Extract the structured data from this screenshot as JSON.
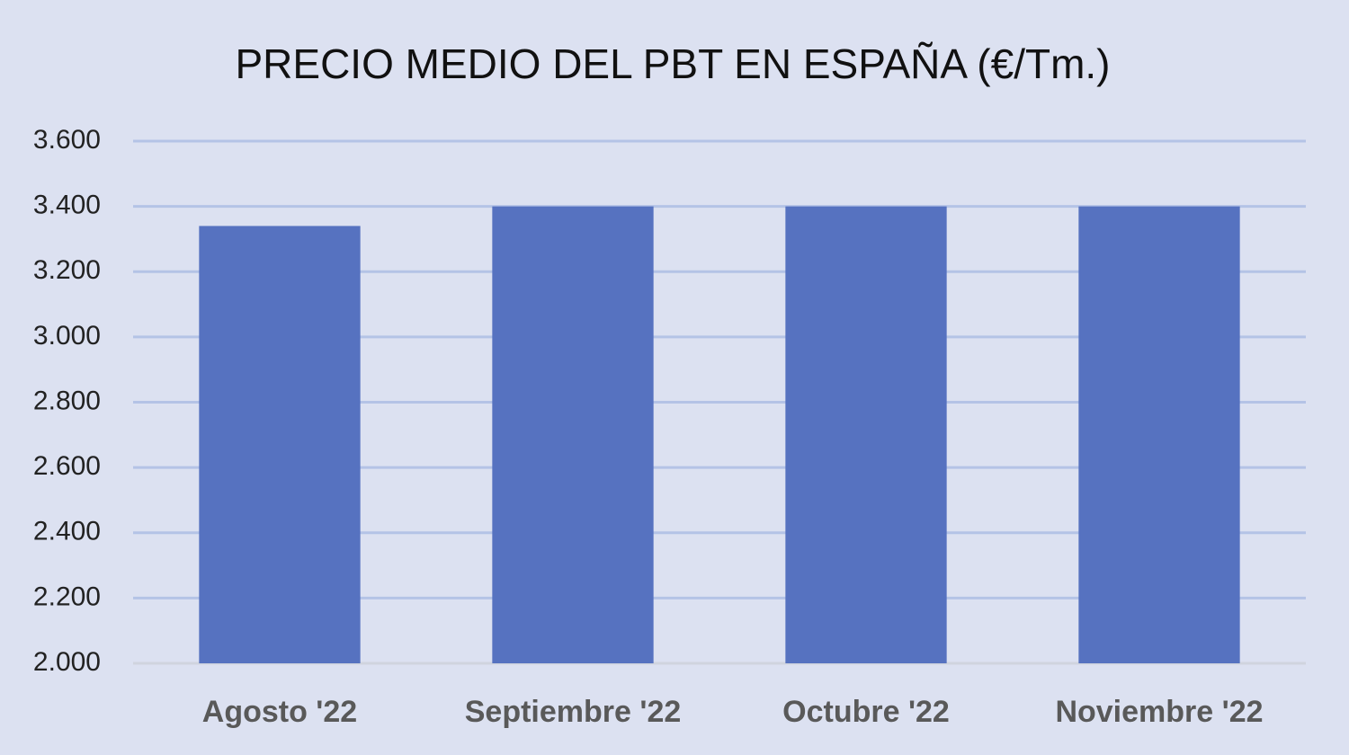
{
  "chart_data": {
    "type": "bar",
    "title": "PRECIO MEDIO DEL PBT EN ESPAÑA (€/Tm.)",
    "categories": [
      "Agosto '22",
      "Septiembre '22",
      "Octubre '22",
      "Noviembre '22"
    ],
    "values": [
      3340,
      3400,
      3400,
      3400
    ],
    "color": "#5672c0",
    "ylim": [
      2000,
      3600
    ],
    "yticks": [
      {
        "value": 2000,
        "label": "2.000"
      },
      {
        "value": 2200,
        "label": "2.200"
      },
      {
        "value": 2400,
        "label": "2.400"
      },
      {
        "value": 2600,
        "label": "2.600"
      },
      {
        "value": 2800,
        "label": "2.800"
      },
      {
        "value": 3000,
        "label": "3.000"
      },
      {
        "value": 3200,
        "label": "3.200"
      },
      {
        "value": 3400,
        "label": "3.400"
      },
      {
        "value": 3600,
        "label": "3.600"
      }
    ],
    "grid": true
  }
}
